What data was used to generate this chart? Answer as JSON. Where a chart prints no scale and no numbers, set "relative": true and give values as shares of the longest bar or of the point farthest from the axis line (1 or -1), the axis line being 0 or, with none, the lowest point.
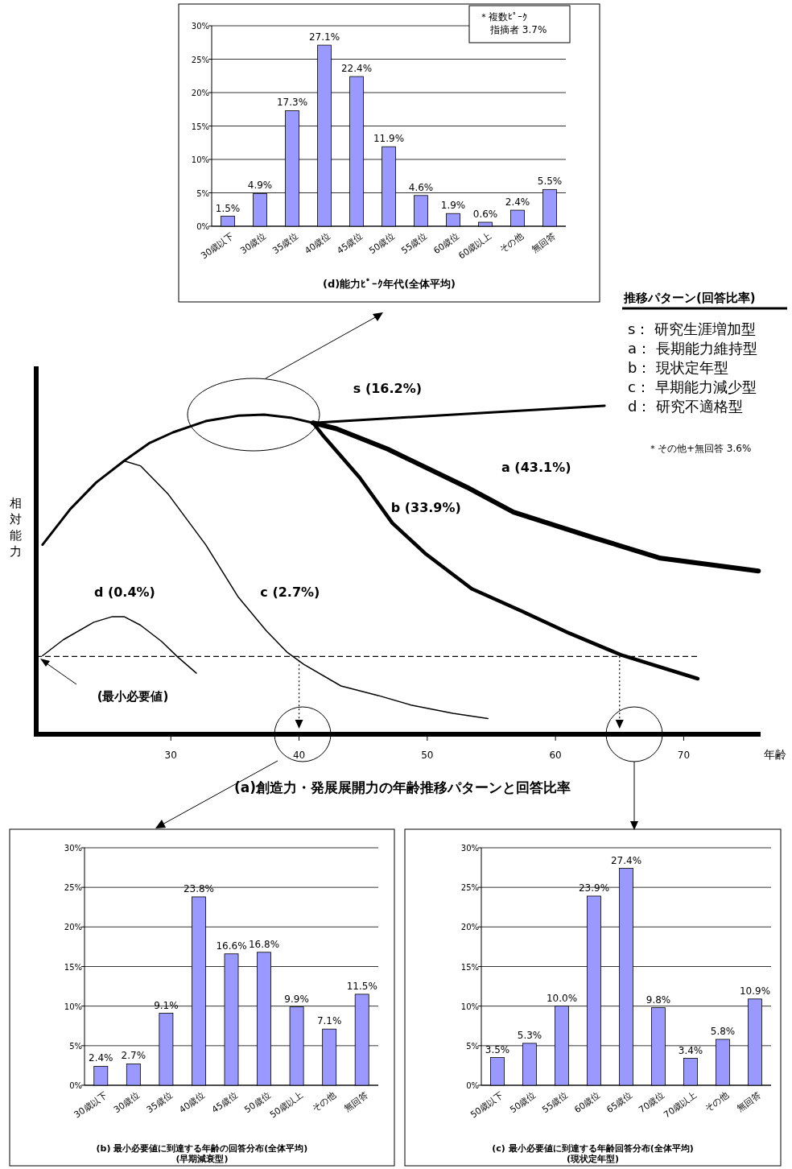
{
  "chart_data": [
    {
      "type": "bar",
      "title": "(d)能力ﾋﾟｰｸ年代(全体平均)",
      "categories": [
        "30歳以下",
        "30歳位",
        "35歳位",
        "40歳位",
        "45歳位",
        "50歳位",
        "55歳位",
        "60歳位",
        "60歳以上",
        "その他",
        "無回答"
      ],
      "values": [
        1.5,
        4.9,
        17.3,
        27.1,
        22.4,
        11.9,
        4.6,
        1.9,
        0.6,
        2.4,
        5.5
      ],
      "value_labels": [
        "1.5%",
        "4.9%",
        "17.3%",
        "27.1%",
        "22.4%",
        "11.9%",
        "4.6%",
        "1.9%",
        "0.6%",
        "2.4%",
        "5.5%"
      ],
      "color": "#9999ff",
      "ylim": [
        0,
        30
      ],
      "yticks": [
        {
          "value": 0,
          "label": "0%"
        },
        {
          "value": 5,
          "label": "5%"
        },
        {
          "value": 10,
          "label": "10%"
        },
        {
          "value": 15,
          "label": "15%"
        },
        {
          "value": 20,
          "label": "20%"
        },
        {
          "value": 25,
          "label": "25%"
        },
        {
          "value": 30,
          "label": "30%"
        }
      ],
      "grid": "y",
      "annotations": [
        "＊複数ﾋﾟｰｸ",
        "指摘者 3.7%"
      ]
    },
    {
      "type": "line",
      "title": "(a)創造力・発展展開力の年齢推移パターンと回答比率",
      "xlabel": "年齢",
      "ylabel": "相対能力",
      "relative": true,
      "xlim": [
        19.5,
        76
      ],
      "xticks": [
        30,
        40,
        50,
        60,
        70
      ],
      "marker": "none",
      "series": [
        {
          "name": "s (16.2%)",
          "color": "#000000",
          "x": [
            19.99,
            22.17,
            24.17,
            26.35,
            28.36,
            30.17,
            32.72,
            35.27,
            37.27,
            39.45,
            41.09,
            63.83
          ],
          "values": [
            0.577,
            0.686,
            0.766,
            0.832,
            0.887,
            0.919,
            0.953,
            0.97,
            0.973,
            0.963,
            0.948,
            1
          ]
        },
        {
          "name": "a (43.1%)",
          "color": "#000000",
          "x": [
            41.09,
            42.91,
            46.91,
            53.09,
            56.73,
            62.92,
            68.19,
            75.83
          ],
          "values": [
            0.948,
            0.93,
            0.868,
            0.752,
            0.676,
            0.599,
            0.536,
            0.497
          ]
        },
        {
          "name": "b (33.9%)",
          "color": "#000000",
          "x": [
            41.09,
            41.82,
            44.73,
            47.27,
            49.82,
            53.46,
            57.46,
            61.1,
            65.1,
            71.1
          ],
          "values": [
            0.948,
            0.912,
            0.781,
            0.643,
            0.551,
            0.443,
            0.373,
            0.307,
            0.242,
            0.169
          ]
        },
        {
          "name": "c (2.7%)",
          "color": "#000000",
          "x": [
            26.35,
            27.63,
            29.81,
            32.72,
            35.27,
            37.45,
            39.09,
            40.36,
            43.27,
            46.18,
            48.73,
            52.0,
            54.73
          ],
          "values": [
            0.832,
            0.817,
            0.73,
            0.577,
            0.417,
            0.315,
            0.249,
            0.213,
            0.147,
            0.118,
            0.089,
            0.064,
            0.048
          ]
        },
        {
          "name": "d (0.4%)",
          "color": "#000000",
          "x": [
            19.99,
            21.62,
            23.99,
            25.44,
            26.35,
            27.63,
            29.26,
            30.54,
            31.99
          ],
          "values": [
            0.239,
            0.288,
            0.341,
            0.358,
            0.358,
            0.332,
            0.283,
            0.235,
            0.186
          ]
        }
      ],
      "ref_lines": [
        {
          "axis": "y",
          "value": 0.237,
          "label": "(最小必要値)",
          "line_style": "dashed",
          "color": "#000000"
        },
        {
          "axis": "x",
          "value": 40,
          "line_style": "dotted",
          "color": "#000000"
        },
        {
          "axis": "x",
          "value": 65,
          "line_style": "dotted",
          "color": "#000000"
        }
      ],
      "annotations": [
        "推移パターン(回答比率)",
        "s： 研究生涯増加型",
        "a： 長期能力維持型",
        "b： 現状定年型",
        "c： 早期能力減少型",
        "d： 研究不適格型",
        "＊その他+無回答 3.6%"
      ]
    },
    {
      "type": "bar",
      "title": "(b) 最小必要値に到達する年齢の回答分布(全体平均)",
      "subtitle": "(早期減衰型)",
      "categories": [
        "30歳以下",
        "30歳位",
        "35歳位",
        "40歳位",
        "45歳位",
        "50歳位",
        "50歳以上",
        "その他",
        "無回答"
      ],
      "values": [
        2.4,
        2.7,
        9.1,
        23.8,
        16.6,
        16.8,
        9.9,
        7.1,
        11.5
      ],
      "value_labels": [
        "2.4%",
        "2.7%",
        "9.1%",
        "23.8%",
        "16.6%",
        "16.8%",
        "9.9%",
        "7.1%",
        "11.5%"
      ],
      "color": "#9999ff",
      "ylim": [
        0,
        30
      ],
      "yticks": [
        {
          "value": 0,
          "label": "0%"
        },
        {
          "value": 5,
          "label": "5%"
        },
        {
          "value": 10,
          "label": "10%"
        },
        {
          "value": 15,
          "label": "15%"
        },
        {
          "value": 20,
          "label": "20%"
        },
        {
          "value": 25,
          "label": "25%"
        },
        {
          "value": 30,
          "label": "30%"
        }
      ],
      "grid": "y"
    },
    {
      "type": "bar",
      "title": "(c) 最小必要値に到達する年齢回答分布(全体平均)",
      "subtitle": "(現状定年型)",
      "categories": [
        "50歳以下",
        "50歳位",
        "55歳位",
        "60歳位",
        "65歳位",
        "70歳位",
        "70歳以上",
        "その他",
        "無回答"
      ],
      "values": [
        3.5,
        5.3,
        10.0,
        23.9,
        27.4,
        9.8,
        3.4,
        5.8,
        10.9
      ],
      "value_labels": [
        "3.5%",
        "5.3%",
        "10.0%",
        "23.9%",
        "27.4%",
        "9.8%",
        "3.4%",
        "5.8%",
        "10.9%"
      ],
      "color": "#9999ff",
      "ylim": [
        0,
        30
      ],
      "yticks": [
        {
          "value": 0,
          "label": "0%"
        },
        {
          "value": 5,
          "label": "5%"
        },
        {
          "value": 10,
          "label": "10%"
        },
        {
          "value": 15,
          "label": "15%"
        },
        {
          "value": 20,
          "label": "20%"
        },
        {
          "value": 25,
          "label": "25%"
        },
        {
          "value": 30,
          "label": "30%"
        }
      ],
      "grid": "y"
    }
  ]
}
